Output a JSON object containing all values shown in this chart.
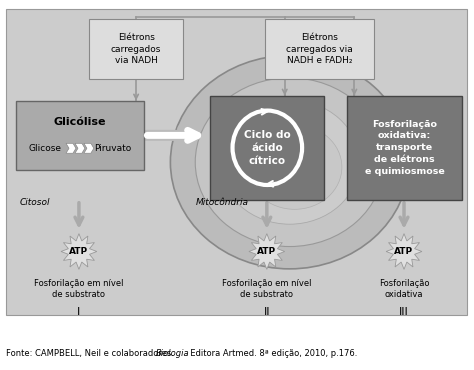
{
  "bg_color": "#cccccc",
  "fig_bg": "#ffffff",
  "footer_normal": "Fonte: CAMPBELL, Neil e colaboradores. ",
  "footer_italic": "Biologia",
  "footer_end": ". Editora Artmed. 8ª edição, 2010, p.176.",
  "box1_label": "Glicólise",
  "box1_sub1": "Glicose",
  "box1_sub2": "Piruvato",
  "box1_color": "#aaaaaa",
  "box2_label": "Ciclo do\nácido\ncítrico",
  "box2_color": "#777777",
  "box3_label": "Fosforilação\noxidativa:\ntransporte\nde elétrons\ne quimiosmose",
  "box3_color": "#777777",
  "electron_box1": "Elétrons\ncarregados\nvia NADH",
  "electron_box2": "Elétrons\ncarregados via\nNADH e FADH₂",
  "ebox_color": "#dddddd",
  "citosol_label": "Citosol",
  "mitocondria_label": "Mitocôndria",
  "atp_label": "ATP",
  "bottom_label1": "Fosforilação em nível\nde substrato",
  "bottom_label2": "Fosforilação em nível\nde substrato",
  "bottom_label3": "Fosforilação\noxidativa",
  "roman1": "I",
  "roman2": "II",
  "roman3": "III",
  "line_color": "#999999",
  "arrow_fill": "#cccccc",
  "white": "#ffffff"
}
